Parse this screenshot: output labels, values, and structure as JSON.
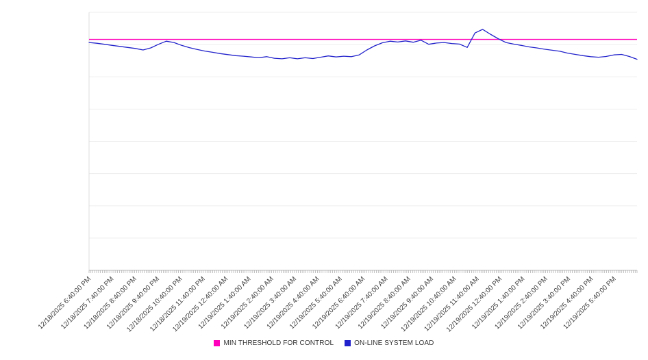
{
  "chart_data": {
    "type": "line",
    "x_labels": [
      "12/18/2025 6:40:00 PM",
      "12/18/2025 7:40:00 PM",
      "12/18/2025 8:40:00 PM",
      "12/18/2025 9:40:00 PM",
      "12/18/2025 10:40:00 PM",
      "12/18/2025 11:40:00 PM",
      "12/19/2025 12:40:00 AM",
      "12/19/2025 1:40:00 AM",
      "12/19/2025 2:40:00 AM",
      "12/19/2025 3:40:00 AM",
      "12/19/2025 4:40:00 AM",
      "12/19/2025 5:40:00 AM",
      "12/19/2025 6:40:00 AM",
      "12/19/2025 7:40:00 AM",
      "12/19/2025 8:40:00 AM",
      "12/19/2025 9:40:00 AM",
      "12/19/2025 10:40:00 AM",
      "12/19/2025 11:40:00 AM",
      "12/19/2025 12:40:00 PM",
      "12/19/2025 1:40:00 PM",
      "12/19/2025 2:40:00 PM",
      "12/19/2025 3:40:00 PM",
      "12/19/2025 4:40:00 PM",
      "12/19/2025 5:40:00 PM"
    ],
    "series": [
      {
        "name": "MIN THRESHOLD FOR CONTROL",
        "kind": "threshold",
        "color": "#ff00bb",
        "value": 89.5
      },
      {
        "name": "ON-LINE SYSTEM LOAD",
        "kind": "line",
        "color": "#2222cc",
        "values": [
          88.3,
          88.0,
          87.6,
          87.2,
          86.8,
          86.4,
          86.0,
          85.4,
          86.2,
          87.6,
          88.8,
          88.3,
          87.2,
          86.3,
          85.6,
          85.0,
          84.5,
          84.0,
          83.6,
          83.2,
          83.0,
          82.7,
          82.4,
          82.8,
          82.2,
          82.0,
          82.4,
          82.0,
          82.4,
          82.1,
          82.6,
          83.1,
          82.7,
          83.0,
          82.8,
          83.5,
          85.4,
          87.0,
          88.2,
          88.8,
          88.5,
          88.9,
          88.4,
          89.2,
          87.6,
          88.1,
          88.3,
          87.9,
          87.7,
          86.4,
          92.0,
          93.4,
          91.5,
          89.8,
          88.3,
          87.7,
          87.2,
          86.6,
          86.2,
          85.7,
          85.3,
          84.9,
          84.2,
          83.7,
          83.2,
          82.8,
          82.6,
          82.9,
          83.5,
          83.7,
          82.9,
          81.8
        ]
      }
    ],
    "ylim": [
      0,
      100
    ],
    "y_axis_labels_visible": false,
    "grid": {
      "horizontal_divisions": 8
    },
    "x_minor_ticks_per_label": 12,
    "legend_position": "bottom"
  },
  "legend": {
    "items": [
      {
        "label": "MIN THRESHOLD FOR CONTROL",
        "color": "#ff00bb"
      },
      {
        "label": "ON-LINE SYSTEM LOAD",
        "color": "#2222cc"
      }
    ]
  }
}
